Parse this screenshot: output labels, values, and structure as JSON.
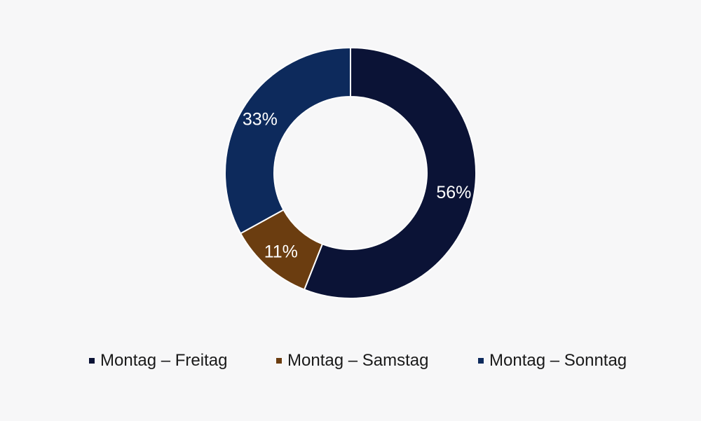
{
  "chart_data": {
    "type": "pie",
    "style": "donut",
    "start_angle_deg": 0,
    "direction": "clockwise",
    "legend_position": "bottom",
    "slices": [
      {
        "name": "Montag – Freitag",
        "value": 56,
        "label": "56%",
        "color": "#0b1336"
      },
      {
        "name": "Montag – Samstag",
        "value": 11,
        "label": "11%",
        "color": "#6b3d10"
      },
      {
        "name": "Montag – Sonntag",
        "value": 33,
        "label": "33%",
        "color": "#0d2a5c"
      }
    ]
  }
}
